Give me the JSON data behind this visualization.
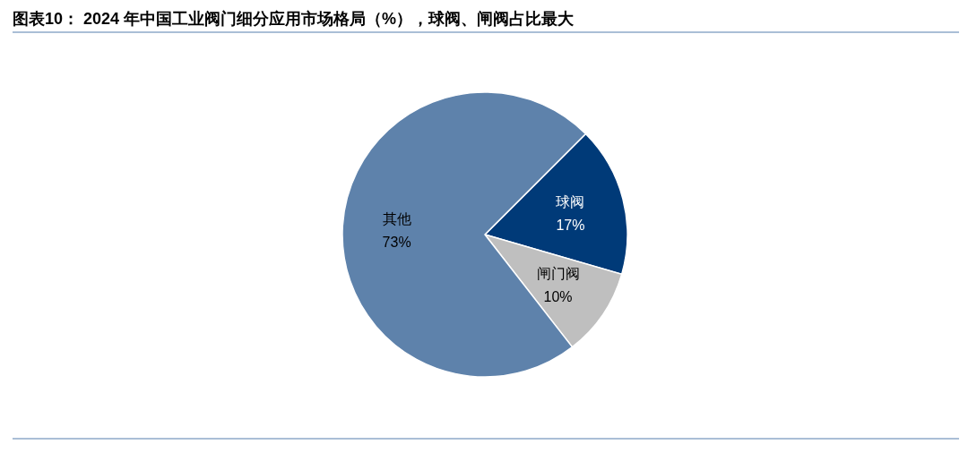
{
  "chart_data": {
    "type": "pie",
    "title": "图表10：  2024 年中国工业阀门细分应用市场格局（%），球阀、闸阀占比最大",
    "categories": [
      "球阀",
      "闸门阀",
      "其他"
    ],
    "values": [
      17,
      10,
      73
    ],
    "colors": [
      "#003a78",
      "#bfbfbf",
      "#5e82ab"
    ],
    "value_labels": [
      "17%",
      "10%",
      "73%"
    ]
  }
}
